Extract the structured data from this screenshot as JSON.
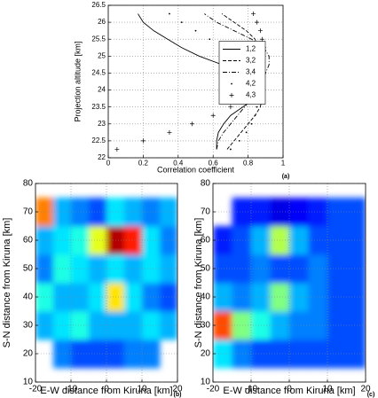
{
  "chart_data": [
    {
      "type": "line",
      "xlabel": "Correlation coefficient",
      "ylabel": "Projection altitude [km]",
      "label": "(a)",
      "xlim": [
        0,
        1
      ],
      "xticks": [
        0,
        0.2,
        0.4,
        0.6,
        0.8,
        1
      ],
      "ylim": [
        22,
        26.5
      ],
      "yticks": [
        22,
        22.5,
        23,
        23.5,
        24,
        24.5,
        25,
        25.5,
        26,
        26.5
      ],
      "grid": true,
      "legend_loc": "center right",
      "y": [
        22.25,
        22.5,
        22.75,
        23,
        23.25,
        23.5,
        23.75,
        24,
        24.25,
        24.5,
        24.75,
        25,
        25.25,
        25.5,
        25.75,
        26,
        26.25
      ],
      "series": [
        {
          "name": "1,2",
          "color": "#000000",
          "linestyle": "solid",
          "marker": "none",
          "values": [
            0.62,
            0.62,
            0.63,
            0.66,
            0.7,
            0.77,
            0.84,
            0.87,
            0.84,
            0.76,
            0.65,
            0.52,
            0.42,
            0.34,
            0.26,
            0.2,
            0.17
          ]
        },
        {
          "name": "3,2",
          "color": "#000000",
          "linestyle": "dashed",
          "marker": "none",
          "values": [
            0.68,
            0.72,
            0.76,
            0.8,
            0.84,
            0.87,
            0.88,
            0.87,
            0.85,
            0.84,
            0.85,
            0.86,
            0.86,
            0.84,
            0.79,
            0.72,
            0.65
          ]
        },
        {
          "name": "3,4",
          "color": "#000000",
          "linestyle": "dashdot",
          "marker": "none",
          "values": [
            0.62,
            0.63,
            0.66,
            0.7,
            0.74,
            0.78,
            0.82,
            0.86,
            0.88,
            0.9,
            0.92,
            0.92,
            0.89,
            0.82,
            0.72,
            0.62,
            0.55
          ]
        },
        {
          "name": "4,2",
          "color": "#000000",
          "linestyle": "none",
          "marker": "dot",
          "values": [
            0.7,
            0.75,
            0.79,
            0.82,
            0.84,
            0.85,
            0.85,
            0.84,
            0.82,
            0.8,
            0.77,
            0.72,
            0.66,
            0.58,
            0.5,
            0.42,
            0.35
          ]
        },
        {
          "name": "4,3",
          "color": "#000000",
          "linestyle": "none",
          "marker": "plus",
          "values": [
            0.05,
            0.2,
            0.35,
            0.48,
            0.6,
            0.7,
            0.78,
            0.82,
            0.83,
            0.84,
            0.86,
            0.88,
            0.89,
            0.88,
            0.87,
            0.85,
            0.83
          ]
        }
      ]
    },
    {
      "type": "heatmap",
      "xlabel": "E-W distance from Kiruna [km]",
      "ylabel": "S-N distance from Kiruna [km]",
      "label": "(b)",
      "xlim": [
        -20,
        20
      ],
      "xticks": [
        -20,
        -10,
        0,
        10,
        20
      ],
      "ylim": [
        10,
        80
      ],
      "yticks": [
        10,
        20,
        30,
        40,
        50,
        60,
        70,
        80
      ],
      "grid": true,
      "colormap": "jet",
      "xbins": [
        -20,
        -15,
        -10,
        -5,
        0,
        5,
        10,
        15,
        20
      ],
      "ybins": [
        15,
        25,
        35,
        45,
        55,
        65,
        75
      ],
      "z": [
        [
          null,
          0.25,
          0.2,
          0.2,
          0.2,
          0.25,
          0.25,
          null
        ],
        [
          0.3,
          0.35,
          0.4,
          0.3,
          0.3,
          0.3,
          0.35,
          0.3
        ],
        [
          0.4,
          0.3,
          0.3,
          0.35,
          0.65,
          0.35,
          0.25,
          0.2
        ],
        [
          0.25,
          0.4,
          0.35,
          0.3,
          0.35,
          0.3,
          0.35,
          0.3
        ],
        [
          0.3,
          0.35,
          0.4,
          0.6,
          0.95,
          0.85,
          0.35,
          0.25
        ],
        [
          0.75,
          0.3,
          0.25,
          0.2,
          0.35,
          0.3,
          0.25,
          0.3
        ]
      ]
    },
    {
      "type": "heatmap",
      "xlabel": "E-W distance from Kiruna [km]",
      "ylabel": "S-N distance from Kiruna [km]",
      "label": "(c)",
      "xlim": [
        -20,
        20
      ],
      "xticks": [
        -20,
        -10,
        0,
        10,
        20
      ],
      "ylim": [
        10,
        80
      ],
      "yticks": [
        10,
        20,
        30,
        40,
        50,
        60,
        70,
        80
      ],
      "grid": true,
      "colormap": "jet",
      "xbins": [
        -20,
        -15,
        -10,
        -5,
        0,
        5,
        10,
        15,
        20
      ],
      "ybins": [
        15,
        25,
        35,
        45,
        55,
        65,
        75
      ],
      "z": [
        [
          0.35,
          0.25,
          0.2,
          0.2,
          0.2,
          0.2,
          0.2,
          0.2
        ],
        [
          0.8,
          0.5,
          0.4,
          0.3,
          0.25,
          0.25,
          0.2,
          0.2
        ],
        [
          0.3,
          0.25,
          0.3,
          0.5,
          0.3,
          0.25,
          0.2,
          0.2
        ],
        [
          0.2,
          0.2,
          0.25,
          0.2,
          0.2,
          0.25,
          0.2,
          0.2
        ],
        [
          0.15,
          0.2,
          0.3,
          0.55,
          0.3,
          0.2,
          0.2,
          0.2
        ],
        [
          null,
          0.15,
          0.15,
          0.1,
          0.12,
          0.15,
          0.2,
          0.2
        ]
      ]
    }
  ]
}
